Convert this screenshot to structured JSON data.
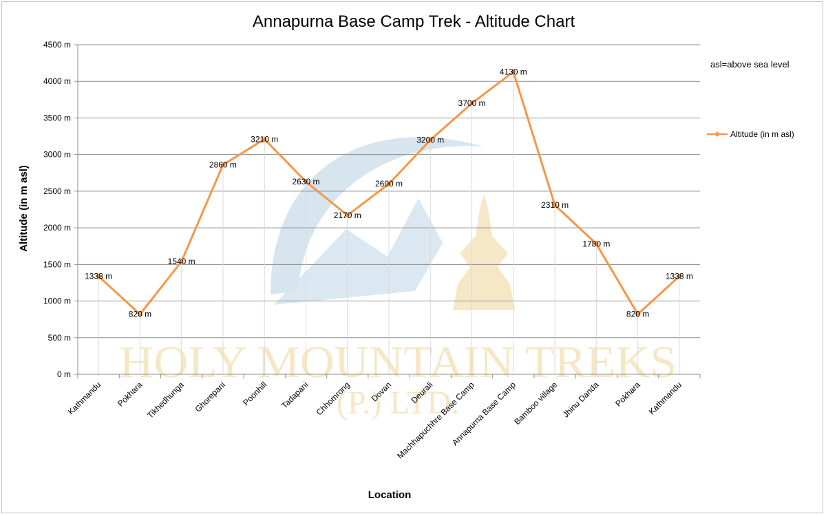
{
  "note": "asl=above sea level",
  "watermark": {
    "line1": "HOLY MOUNTAIN TREKS",
    "line2": "(P.) LTD."
  },
  "colors": {
    "line": "#f79646",
    "grid": "#8c8c8c",
    "dropline": "#d9d9d9",
    "watermark_blue": "#d7e5ef",
    "watermark_gold": "#f3dfb4"
  },
  "chart_data": {
    "type": "line",
    "title": "Annapurna Base Camp Trek - Altitude Chart",
    "xlabel": "Location",
    "ylabel": "Altitude (in m asl)",
    "ylim": [
      0,
      4500
    ],
    "ytick_step": 500,
    "ytick_suffix": " m",
    "grid": true,
    "legend_position": "right",
    "categories": [
      "Kathmandu",
      "Pokhara",
      "Tikhedhunga",
      "Ghorepani",
      "Poonhill",
      "Tadapani",
      "Chhomrong",
      "Dovan",
      "Deurali",
      "Machhapuchhre Base Camp",
      "Annapurna Base Camp",
      "Bamboo village",
      "Jhinu Danda",
      "Pokhara",
      "Kathmandu"
    ],
    "series": [
      {
        "name": "Altitude (in  m asl)",
        "values": [
          1338,
          820,
          1540,
          2860,
          3210,
          2630,
          2170,
          2600,
          3200,
          3700,
          4130,
          2310,
          1780,
          820,
          1338
        ],
        "labels": [
          "1338 m",
          "820 m",
          "1540 m",
          "2860 m",
          "3210 m",
          "2630 m",
          "2170 m",
          "2600 m",
          "3200 m",
          "3700 m",
          "4130 m",
          "2310 m",
          "1780 m",
          "820 m",
          "1338 m"
        ]
      }
    ]
  }
}
